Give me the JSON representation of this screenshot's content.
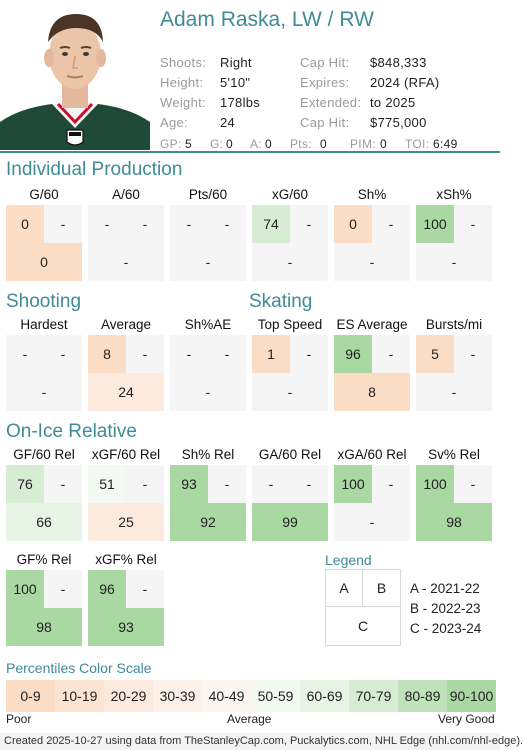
{
  "player": {
    "name": "Adam Raska, LW / RW",
    "info_left": [
      {
        "label": "Shoots:",
        "value": "Right"
      },
      {
        "label": "Height:",
        "value": "5'10\""
      },
      {
        "label": "Weight:",
        "value": "178lbs"
      },
      {
        "label": "Age:",
        "value": "24"
      }
    ],
    "info_right": [
      {
        "label": "Cap Hit:",
        "value": "$848,333"
      },
      {
        "label": "Expires:",
        "value": "2024 (RFA)"
      },
      {
        "label": "Extended:",
        "value": "to 2025"
      },
      {
        "label": "Cap Hit:",
        "value": "$775,000"
      }
    ],
    "stats": [
      {
        "label": "GP:",
        "value": "5"
      },
      {
        "label": "G:",
        "value": "0"
      },
      {
        "label": "A:",
        "value": "0"
      },
      {
        "label": "Pts:",
        "value": "0"
      },
      {
        "label": "PIM:",
        "value": "0"
      },
      {
        "label": "TOI:",
        "value": "6:49"
      }
    ]
  },
  "colors": {
    "accent": "#3f8b96",
    "empty": "#f5f5f5",
    "scale": [
      "#fbdcc4",
      "#fce4d2",
      "#fdeadf",
      "#fdf0e9",
      "#fcf6f2",
      "#f4f9f3",
      "#e7f3e5",
      "#d6ecd3",
      "#bfe2ba",
      "#a9d8a2"
    ]
  },
  "sections": {
    "individual": {
      "title": "Individual Production",
      "metrics": [
        {
          "label": "G/60",
          "a": "0",
          "b": "-",
          "c": "0",
          "ba": 0,
          "bb": null,
          "bc": 0
        },
        {
          "label": "A/60",
          "a": "-",
          "b": "-",
          "c": "-",
          "ba": null,
          "bb": null,
          "bc": null
        },
        {
          "label": "Pts/60",
          "a": "-",
          "b": "-",
          "c": "-",
          "ba": null,
          "bb": null,
          "bc": null
        },
        {
          "label": "xG/60",
          "a": "74",
          "b": "-",
          "c": "-",
          "ba": 7,
          "bb": null,
          "bc": null
        },
        {
          "label": "Sh%",
          "a": "0",
          "b": "-",
          "c": "-",
          "ba": 0,
          "bb": null,
          "bc": null
        },
        {
          "label": "xSh%",
          "a": "100",
          "b": "-",
          "c": "-",
          "ba": 9,
          "bb": null,
          "bc": null
        }
      ]
    },
    "shooting": {
      "title": "Shooting",
      "metrics": [
        {
          "label": "Hardest",
          "a": "-",
          "b": "-",
          "c": "-",
          "ba": null,
          "bb": null,
          "bc": null
        },
        {
          "label": "Average",
          "a": "8",
          "b": "-",
          "c": "24",
          "ba": 0,
          "bb": null,
          "bc": 2
        },
        {
          "label": "Sh%AE",
          "a": "-",
          "b": "-",
          "c": "-",
          "ba": null,
          "bb": null,
          "bc": null
        }
      ]
    },
    "skating": {
      "title": "Skating",
      "metrics": [
        {
          "label": "Top Speed",
          "a": "1",
          "b": "-",
          "c": "-",
          "ba": 0,
          "bb": null,
          "bc": null
        },
        {
          "label": "ES Average",
          "a": "96",
          "b": "-",
          "c": "8",
          "ba": 9,
          "bb": null,
          "bc": 0
        },
        {
          "label": "Bursts/mi",
          "a": "5",
          "b": "-",
          "c": "-",
          "ba": 0,
          "bb": null,
          "bc": null
        }
      ]
    },
    "onice": {
      "title": "On-Ice Relative",
      "metrics": [
        {
          "label": "GF/60 Rel",
          "a": "76",
          "b": "-",
          "c": "66",
          "ba": 7,
          "bb": null,
          "bc": 6
        },
        {
          "label": "xGF/60 Rel",
          "a": "51",
          "b": "-",
          "c": "25",
          "ba": 5,
          "bb": null,
          "bc": 2
        },
        {
          "label": "Sh% Rel",
          "a": "93",
          "b": "-",
          "c": "92",
          "ba": 9,
          "bb": null,
          "bc": 9
        },
        {
          "label": "GA/60 Rel",
          "a": "-",
          "b": "-",
          "c": "99",
          "ba": null,
          "bb": null,
          "bc": 9
        },
        {
          "label": "xGA/60 Rel",
          "a": "100",
          "b": "-",
          "c": "-",
          "ba": 9,
          "bb": null,
          "bc": null
        },
        {
          "label": "Sv% Rel",
          "a": "100",
          "b": "-",
          "c": "98",
          "ba": 9,
          "bb": null,
          "bc": 9
        },
        {
          "label": "GF% Rel",
          "a": "100",
          "b": "-",
          "c": "98",
          "ba": 9,
          "bb": null,
          "bc": 9
        },
        {
          "label": "xGF% Rel",
          "a": "96",
          "b": "-",
          "c": "93",
          "ba": 9,
          "bb": null,
          "bc": 9
        }
      ]
    }
  },
  "legend": {
    "title": "Legend",
    "boxes": [
      "A",
      "B",
      "C"
    ],
    "entries": [
      "A - 2021-22",
      "B - 2022-23",
      "C - 2023-24"
    ]
  },
  "scale": {
    "title": "Percentiles Color Scale",
    "bins": [
      "0-9",
      "10-19",
      "20-29",
      "30-39",
      "40-49",
      "50-59",
      "60-69",
      "70-79",
      "80-89",
      "90-100"
    ],
    "low": "Poor",
    "mid": "Average",
    "high": "Very Good"
  },
  "footer": "Created 2025-10-27 using data from TheStanleyCap.com, Puckalytics.com, NHL Edge (nhl.com/nhl-edge)."
}
